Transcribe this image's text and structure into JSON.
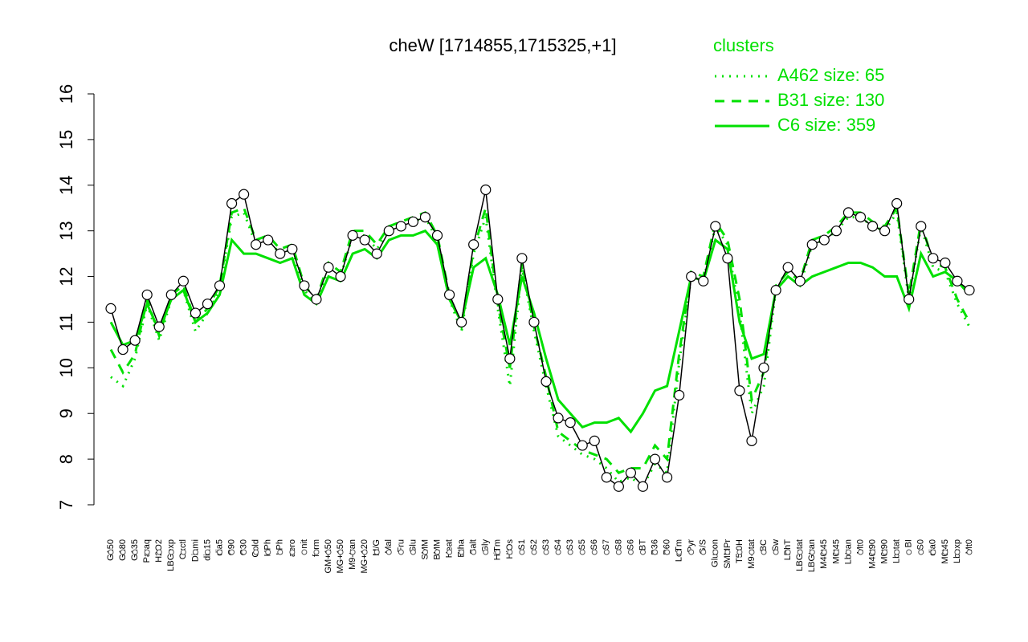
{
  "chart_data": {
    "type": "line",
    "title": "cheW [1714855,1715325,+1]",
    "legend_title": "clusters",
    "legend_position": "top-right",
    "categories": [
      "G150",
      "G180",
      "G135",
      "Paraq",
      "H2O2",
      "LBGexp",
      "Oxctl",
      "Diami",
      "dia15",
      "dia5",
      "C90",
      "C30",
      "Cold",
      "HPh",
      "LPh",
      "aero",
      "nit",
      "ferm",
      "GM+150",
      "MG+150",
      "M9-tran",
      "MG+120",
      "M/G",
      "Mal",
      "Fru",
      "Glu",
      "SMM",
      "BMM",
      "Heat",
      "Etha",
      "Salt",
      "Gly",
      "HiTm",
      "HiOs",
      "S1",
      "S2",
      "S3",
      "S4",
      "S3",
      "S5",
      "S6",
      "S7",
      "S8",
      "S6",
      "BT",
      "B36",
      "B60",
      "LoTm",
      "Pyr",
      "G/S",
      "Glucon",
      "SMMPr",
      "T5.0H",
      "M9-stat",
      "BC",
      "Sw",
      "LPhT",
      "LBGstat",
      "LBGtran",
      "M40t45",
      "M0t45",
      "Lbtran",
      "Mt0",
      "M40t90",
      "M0t90",
      "Lbstat",
      "BI",
      "S0",
      "dia0",
      "M0t45",
      "Lbexp",
      "Mt0"
    ],
    "series": [
      {
        "color": "#000000",
        "linestyle": "solid",
        "markers": true,
        "values": [
          11.3,
          10.4,
          10.6,
          11.6,
          10.9,
          11.6,
          11.9,
          11.2,
          11.4,
          11.8,
          13.6,
          13.8,
          12.7,
          12.8,
          12.5,
          12.6,
          11.8,
          11.5,
          12.2,
          12.0,
          12.9,
          12.8,
          12.5,
          13.0,
          13.1,
          13.2,
          13.3,
          12.9,
          11.6,
          11.0,
          12.7,
          13.9,
          11.5,
          10.2,
          12.4,
          11.0,
          9.7,
          8.9,
          8.8,
          8.3,
          8.4,
          7.6,
          7.4,
          7.7,
          7.4,
          8.0,
          7.6,
          9.4,
          12.0,
          11.9,
          13.1,
          12.4,
          9.5,
          8.4,
          10.0,
          11.7,
          12.2,
          11.9,
          12.7,
          12.8,
          13.0,
          13.4,
          13.3,
          13.1,
          13.0,
          13.6,
          11.5,
          13.1,
          12.4,
          12.3,
          11.9,
          11.7
        ]
      },
      {
        "name": "A462 size: 65",
        "color": "#00e000",
        "linestyle": "dotted",
        "markers": false,
        "values": [
          9.8,
          9.6,
          10.2,
          11.4,
          10.6,
          11.5,
          11.7,
          10.8,
          11.2,
          11.7,
          13.3,
          13.4,
          12.7,
          12.8,
          12.5,
          12.6,
          11.7,
          11.4,
          12.2,
          12.0,
          12.9,
          12.9,
          12.6,
          13.0,
          13.1,
          13.2,
          13.3,
          12.8,
          11.5,
          10.8,
          12.5,
          13.3,
          11.3,
          9.6,
          12.2,
          10.8,
          9.6,
          8.5,
          8.3,
          8.1,
          8.0,
          7.8,
          7.5,
          7.6,
          7.4,
          7.9,
          7.7,
          10.1,
          12.0,
          11.9,
          13.1,
          12.7,
          11.2,
          9.0,
          9.6,
          11.7,
          12.0,
          11.8,
          12.7,
          12.8,
          13.0,
          13.3,
          13.3,
          13.1,
          13.0,
          13.4,
          11.5,
          13.1,
          12.2,
          12.1,
          11.4,
          10.9
        ]
      },
      {
        "name": "B31 size: 130",
        "color": "#00e000",
        "linestyle": "dashed",
        "markers": false,
        "values": [
          10.4,
          9.9,
          10.3,
          11.5,
          10.7,
          11.6,
          11.8,
          11.0,
          11.3,
          11.8,
          13.4,
          13.5,
          12.8,
          12.9,
          12.6,
          12.7,
          11.8,
          11.5,
          12.3,
          12.1,
          13.0,
          13.0,
          12.7,
          13.1,
          13.2,
          13.3,
          13.4,
          12.9,
          11.6,
          10.9,
          12.6,
          13.5,
          11.4,
          10.0,
          12.3,
          10.9,
          9.8,
          8.6,
          8.4,
          8.2,
          8.1,
          8.0,
          7.7,
          7.8,
          7.8,
          8.3,
          8.0,
          10.3,
          12.1,
          12.0,
          13.2,
          12.8,
          11.5,
          9.3,
          9.9,
          11.8,
          12.1,
          11.9,
          12.8,
          12.9,
          13.1,
          13.4,
          13.4,
          13.2,
          13.1,
          13.5,
          11.6,
          13.2,
          12.3,
          12.2,
          11.5,
          11.0
        ]
      },
      {
        "name": "C6 size: 359",
        "color": "#00e000",
        "linestyle": "solid",
        "markers": false,
        "values": [
          11.0,
          10.5,
          10.6,
          11.4,
          10.8,
          11.5,
          11.7,
          11.0,
          11.2,
          11.6,
          12.8,
          12.5,
          12.5,
          12.4,
          12.3,
          12.4,
          11.6,
          11.4,
          12.0,
          11.9,
          12.5,
          12.6,
          12.4,
          12.8,
          12.9,
          12.9,
          13.0,
          12.7,
          11.5,
          11.0,
          12.2,
          12.4,
          11.6,
          10.5,
          12.0,
          11.2,
          10.2,
          9.3,
          9.0,
          8.7,
          8.8,
          8.8,
          8.9,
          8.6,
          9.0,
          9.5,
          9.6,
          10.8,
          12.0,
          11.9,
          12.8,
          12.6,
          11.0,
          10.2,
          10.3,
          11.7,
          12.0,
          11.8,
          12.0,
          12.1,
          12.2,
          12.3,
          12.3,
          12.2,
          12.0,
          12.0,
          11.3,
          12.5,
          12.0,
          12.1,
          11.9,
          11.6
        ]
      }
    ],
    "ylim": [
      7,
      16
    ],
    "yticks": [
      7,
      8,
      9,
      10,
      11,
      12,
      13,
      14,
      15,
      16
    ],
    "grid": false
  }
}
